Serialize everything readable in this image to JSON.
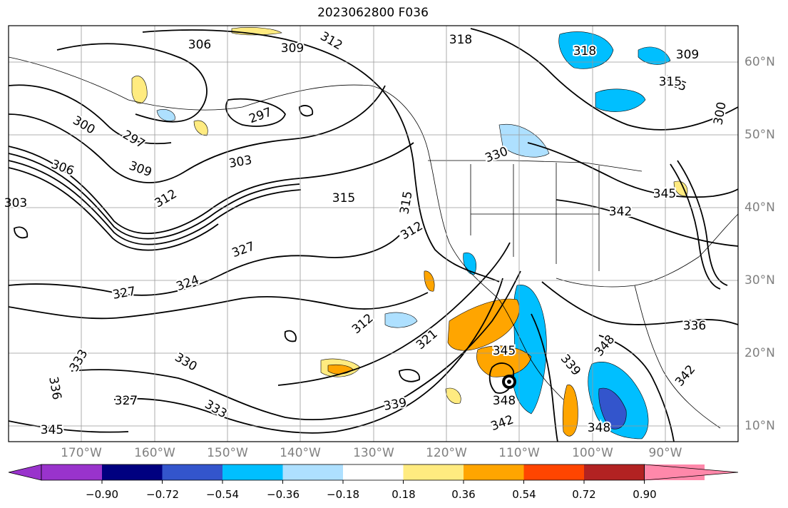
{
  "title": "2023062800 F036",
  "lat_labels": [
    "60°N",
    "50°N",
    "40°N",
    "30°N",
    "20°N",
    "10°N"
  ],
  "lon_labels": [
    "170°W",
    "160°W",
    "150°W",
    "140°W",
    "130°W",
    "120°W",
    "110°W",
    "100°W",
    "90°W"
  ],
  "colorbar": {
    "colors": [
      "#9933cc",
      "#000080",
      "#3355cc",
      "#00bfff",
      "#aee0ff",
      "#ffffff",
      "#ffeb80",
      "#ffa500",
      "#ff4500",
      "#b22222",
      "#ff88aa"
    ],
    "ticks": [
      "−0.90",
      "−0.72",
      "−0.54",
      "−0.36",
      "−0.18",
      "0.18",
      "0.36",
      "0.54",
      "0.72",
      "0.90"
    ]
  },
  "contour_labels": [
    "306",
    "309",
    "312",
    "318",
    "318",
    "297",
    "300",
    "297",
    "303",
    "309",
    "306",
    "312",
    "315",
    "315",
    "330",
    "345",
    "342",
    "327",
    "324",
    "327",
    "312",
    "315",
    "321",
    "345",
    "348",
    "339",
    "333",
    "330",
    "333",
    "336",
    "327",
    "345",
    "342",
    "348",
    "348",
    "336",
    "342",
    "339",
    "312",
    "300",
    "309",
    "315",
    "303"
  ],
  "legend_note": ""
}
